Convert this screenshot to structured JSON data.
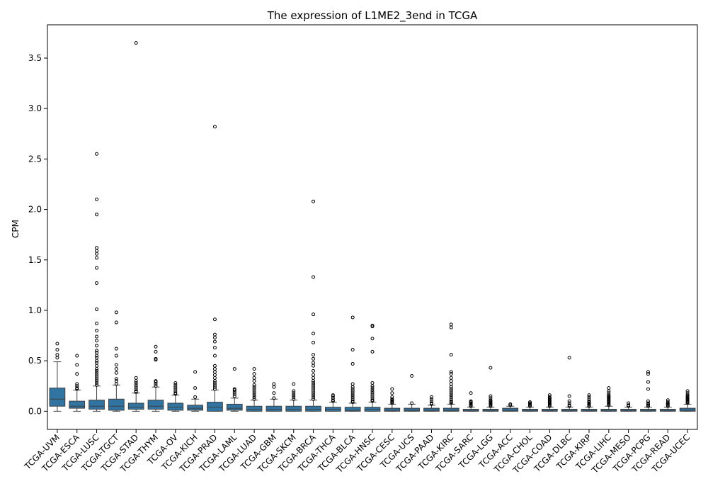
{
  "chart_data": {
    "type": "box",
    "title": "The expression of L1ME2_3end in TCGA",
    "xlabel": "",
    "ylabel": "CPM",
    "ylim": [
      -0.18,
      3.83
    ],
    "yticks": [
      0.0,
      0.5,
      1.0,
      1.5,
      2.0,
      2.5,
      3.0,
      3.5
    ],
    "ytick_labels": [
      "0.0",
      "0.5",
      "1.0",
      "1.5",
      "2.0",
      "2.5",
      "3.0",
      "3.5"
    ],
    "grid": false,
    "box_color": "#3274a1",
    "categories": [
      "TCGA-UVM",
      "TCGA-ESCA",
      "TCGA-LUSC",
      "TCGA-TGCT",
      "TCGA-STAD",
      "TCGA-THYM",
      "TCGA-OV",
      "TCGA-KICH",
      "TCGA-PRAD",
      "TCGA-LAML",
      "TCGA-LUAD",
      "TCGA-GBM",
      "TCGA-SKCM",
      "TCGA-BRCA",
      "TCGA-THCA",
      "TCGA-BLCA",
      "TCGA-HNSC",
      "TCGA-CESC",
      "TCGA-UCS",
      "TCGA-PAAD",
      "TCGA-KIRC",
      "TCGA-SARC",
      "TCGA-LGG",
      "TCGA-ACC",
      "TCGA-CHOL",
      "TCGA-COAD",
      "TCGA-DLBC",
      "TCGA-KIRP",
      "TCGA-LIHC",
      "TCGA-MESO",
      "TCGA-PCPG",
      "TCGA-READ",
      "TCGA-UCEC"
    ],
    "boxes": [
      {
        "whislo": 0.0,
        "q1": 0.05,
        "med": 0.12,
        "q3": 0.23,
        "whishi": 0.49,
        "fliers": [
          0.53,
          0.56,
          0.61,
          0.67
        ]
      },
      {
        "whislo": 0.0,
        "q1": 0.03,
        "med": 0.05,
        "q3": 0.1,
        "whishi": 0.21,
        "fliers": [
          0.22,
          0.23,
          0.25,
          0.27,
          0.37,
          0.46,
          0.55
        ]
      },
      {
        "whislo": 0.0,
        "q1": 0.02,
        "med": 0.05,
        "q3": 0.11,
        "whishi": 0.25,
        "fliers": [
          0.26,
          0.28,
          0.3,
          0.32,
          0.34,
          0.36,
          0.38,
          0.4,
          0.42,
          0.45,
          0.48,
          0.5,
          0.53,
          0.55,
          0.58,
          0.6,
          0.65,
          0.7,
          0.74,
          0.8,
          0.87,
          1.01,
          1.27,
          1.42,
          1.52,
          1.56,
          1.59,
          1.62,
          1.95,
          2.1,
          2.55
        ]
      },
      {
        "whislo": 0.0,
        "q1": 0.01,
        "med": 0.05,
        "q3": 0.12,
        "whishi": 0.26,
        "fliers": [
          0.27,
          0.3,
          0.32,
          0.38,
          0.42,
          0.46,
          0.55,
          0.62,
          0.88,
          0.98
        ]
      },
      {
        "whislo": 0.0,
        "q1": 0.02,
        "med": 0.04,
        "q3": 0.08,
        "whishi": 0.18,
        "fliers": [
          0.19,
          0.2,
          0.22,
          0.24,
          0.26,
          0.28,
          0.3,
          0.33,
          3.65
        ]
      },
      {
        "whislo": 0.0,
        "q1": 0.02,
        "med": 0.05,
        "q3": 0.11,
        "whishi": 0.24,
        "fliers": [
          0.25,
          0.27,
          0.29,
          0.3,
          0.51,
          0.52,
          0.59,
          0.64
        ]
      },
      {
        "whislo": 0.0,
        "q1": 0.01,
        "med": 0.04,
        "q3": 0.08,
        "whishi": 0.16,
        "fliers": [
          0.17,
          0.18,
          0.2,
          0.22,
          0.24,
          0.26,
          0.28
        ]
      },
      {
        "whislo": 0.0,
        "q1": 0.01,
        "med": 0.03,
        "q3": 0.06,
        "whishi": 0.12,
        "fliers": [
          0.14,
          0.23,
          0.39
        ]
      },
      {
        "whislo": 0.0,
        "q1": 0.0,
        "med": 0.04,
        "q3": 0.09,
        "whishi": 0.21,
        "fliers": [
          0.22,
          0.24,
          0.26,
          0.28,
          0.3,
          0.33,
          0.36,
          0.39,
          0.42,
          0.45,
          0.55,
          0.63,
          0.69,
          0.73,
          0.76,
          0.91,
          2.82
        ]
      },
      {
        "whislo": 0.0,
        "q1": 0.01,
        "med": 0.03,
        "q3": 0.07,
        "whishi": 0.13,
        "fliers": [
          0.15,
          0.17,
          0.19,
          0.21,
          0.22,
          0.42
        ]
      },
      {
        "whislo": 0.0,
        "q1": 0.0,
        "med": 0.02,
        "q3": 0.05,
        "whishi": 0.11,
        "fliers": [
          0.12,
          0.14,
          0.16,
          0.18,
          0.2,
          0.22,
          0.24,
          0.26,
          0.3,
          0.33,
          0.37,
          0.42
        ]
      },
      {
        "whislo": 0.0,
        "q1": 0.0,
        "med": 0.02,
        "q3": 0.05,
        "whishi": 0.12,
        "fliers": [
          0.13,
          0.18,
          0.24,
          0.27
        ]
      },
      {
        "whislo": 0.0,
        "q1": 0.0,
        "med": 0.02,
        "q3": 0.05,
        "whishi": 0.11,
        "fliers": [
          0.12,
          0.14,
          0.16,
          0.18,
          0.2,
          0.27
        ]
      },
      {
        "whislo": 0.0,
        "q1": 0.0,
        "med": 0.02,
        "q3": 0.05,
        "whishi": 0.11,
        "fliers": [
          0.12,
          0.14,
          0.16,
          0.18,
          0.2,
          0.22,
          0.24,
          0.26,
          0.28,
          0.3,
          0.33,
          0.36,
          0.4,
          0.45,
          0.48,
          0.52,
          0.56,
          0.68,
          0.77,
          0.96,
          1.33,
          2.08
        ]
      },
      {
        "whislo": 0.0,
        "q1": 0.0,
        "med": 0.02,
        "q3": 0.04,
        "whishi": 0.09,
        "fliers": [
          0.1,
          0.11,
          0.13,
          0.15,
          0.16
        ]
      },
      {
        "whislo": 0.0,
        "q1": 0.0,
        "med": 0.01,
        "q3": 0.04,
        "whishi": 0.08,
        "fliers": [
          0.09,
          0.1,
          0.12,
          0.14,
          0.16,
          0.18,
          0.2,
          0.22,
          0.24,
          0.27,
          0.47,
          0.61,
          0.93
        ]
      },
      {
        "whislo": 0.0,
        "q1": 0.0,
        "med": 0.02,
        "q3": 0.04,
        "whishi": 0.09,
        "fliers": [
          0.1,
          0.11,
          0.13,
          0.15,
          0.17,
          0.19,
          0.21,
          0.23,
          0.25,
          0.28,
          0.59,
          0.72,
          0.84,
          0.85
        ]
      },
      {
        "whislo": 0.0,
        "q1": 0.0,
        "med": 0.01,
        "q3": 0.03,
        "whishi": 0.07,
        "fliers": [
          0.08,
          0.09,
          0.1,
          0.11,
          0.12,
          0.14,
          0.18,
          0.22
        ]
      },
      {
        "whislo": 0.0,
        "q1": 0.0,
        "med": 0.01,
        "q3": 0.03,
        "whishi": 0.07,
        "fliers": [
          0.08,
          0.35
        ]
      },
      {
        "whislo": 0.0,
        "q1": 0.0,
        "med": 0.01,
        "q3": 0.03,
        "whishi": 0.06,
        "fliers": [
          0.07,
          0.08,
          0.1,
          0.12,
          0.14
        ]
      },
      {
        "whislo": 0.0,
        "q1": 0.0,
        "med": 0.01,
        "q3": 0.03,
        "whishi": 0.07,
        "fliers": [
          0.08,
          0.09,
          0.1,
          0.12,
          0.14,
          0.16,
          0.18,
          0.2,
          0.22,
          0.24,
          0.27,
          0.3,
          0.33,
          0.37,
          0.39,
          0.56,
          0.83,
          0.86
        ]
      },
      {
        "whislo": 0.0,
        "q1": 0.0,
        "med": 0.01,
        "q3": 0.02,
        "whishi": 0.04,
        "fliers": [
          0.05,
          0.06,
          0.07,
          0.08,
          0.09,
          0.1,
          0.18
        ]
      },
      {
        "whislo": 0.0,
        "q1": 0.0,
        "med": 0.01,
        "q3": 0.02,
        "whishi": 0.04,
        "fliers": [
          0.05,
          0.06,
          0.07,
          0.08,
          0.09,
          0.1,
          0.11,
          0.13,
          0.15,
          0.43
        ]
      },
      {
        "whislo": 0.0,
        "q1": 0.0,
        "med": 0.01,
        "q3": 0.03,
        "whishi": 0.05,
        "fliers": [
          0.06,
          0.07
        ]
      },
      {
        "whislo": 0.0,
        "q1": 0.0,
        "med": 0.01,
        "q3": 0.02,
        "whishi": 0.04,
        "fliers": [
          0.05,
          0.06,
          0.07,
          0.08,
          0.09
        ]
      },
      {
        "whislo": 0.0,
        "q1": 0.0,
        "med": 0.01,
        "q3": 0.02,
        "whishi": 0.04,
        "fliers": [
          0.05,
          0.06,
          0.07,
          0.08,
          0.09,
          0.1,
          0.11,
          0.12,
          0.13,
          0.14,
          0.16
        ]
      },
      {
        "whislo": 0.0,
        "q1": 0.0,
        "med": 0.01,
        "q3": 0.02,
        "whishi": 0.04,
        "fliers": [
          0.05,
          0.06,
          0.08,
          0.1,
          0.15,
          0.53
        ]
      },
      {
        "whislo": 0.0,
        "q1": 0.0,
        "med": 0.01,
        "q3": 0.02,
        "whishi": 0.04,
        "fliers": [
          0.05,
          0.06,
          0.07,
          0.08,
          0.09,
          0.1,
          0.12,
          0.14,
          0.16
        ]
      },
      {
        "whislo": 0.0,
        "q1": 0.0,
        "med": 0.01,
        "q3": 0.02,
        "whishi": 0.05,
        "fliers": [
          0.06,
          0.07,
          0.08,
          0.09,
          0.1,
          0.11,
          0.12,
          0.13,
          0.14,
          0.15,
          0.16,
          0.18,
          0.2,
          0.23
        ]
      },
      {
        "whislo": 0.0,
        "q1": 0.0,
        "med": 0.01,
        "q3": 0.02,
        "whishi": 0.04,
        "fliers": [
          0.05,
          0.06,
          0.08
        ]
      },
      {
        "whislo": 0.0,
        "q1": 0.0,
        "med": 0.01,
        "q3": 0.02,
        "whishi": 0.04,
        "fliers": [
          0.05,
          0.06,
          0.07,
          0.08,
          0.1,
          0.22,
          0.29,
          0.37,
          0.39
        ]
      },
      {
        "whislo": 0.0,
        "q1": 0.0,
        "med": 0.01,
        "q3": 0.02,
        "whishi": 0.04,
        "fliers": [
          0.05,
          0.06,
          0.07,
          0.08,
          0.09,
          0.11
        ]
      },
      {
        "whislo": 0.0,
        "q1": 0.0,
        "med": 0.01,
        "q3": 0.03,
        "whishi": 0.07,
        "fliers": [
          0.08,
          0.09,
          0.1,
          0.11,
          0.12,
          0.13,
          0.14,
          0.15,
          0.16,
          0.18,
          0.2
        ]
      }
    ]
  }
}
